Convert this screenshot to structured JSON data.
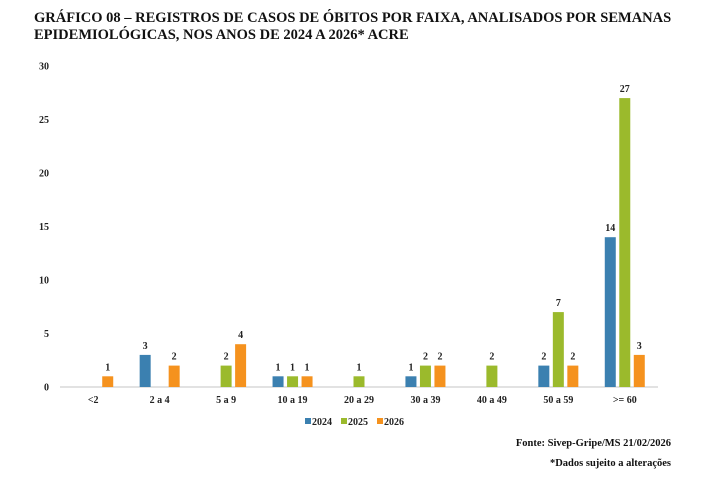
{
  "chart_data": {
    "type": "bar",
    "title": "GRÁFICO 08 – REGISTROS DE CASOS DE ÓBITOS POR FAIXA, ANALISADOS POR SEMANAS EPIDEMIOLÓGICAS, NOS ANOS DE 2024 A 2026* ACRE",
    "categories": [
      "<2",
      "2 a 4",
      "5 a 9",
      "10 a 19",
      "20 a 29",
      "30 a 39",
      "40 a 49",
      "50 a 59",
      ">= 60"
    ],
    "series": [
      {
        "name": "2024",
        "color": "#3b80b0",
        "values": [
          null,
          3,
          null,
          1,
          null,
          1,
          null,
          2,
          14
        ]
      },
      {
        "name": "2025",
        "color": "#9bba2c",
        "values": [
          null,
          null,
          2,
          1,
          1,
          2,
          2,
          7,
          27
        ]
      },
      {
        "name": "2026",
        "color": "#f5921e",
        "values": [
          1,
          2,
          4,
          1,
          null,
          2,
          null,
          2,
          3
        ]
      }
    ],
    "ylim": [
      0,
      30
    ],
    "yticks": [
      0,
      5,
      10,
      15,
      20,
      25,
      30
    ],
    "grid": false,
    "data_labels": true,
    "legend": "bottom",
    "xlabel": "",
    "ylabel": ""
  },
  "footer": {
    "source": "Fonte: Sivep-Gripe/MS 21/02/2026",
    "note": "*Dados sujeito a alterações"
  }
}
